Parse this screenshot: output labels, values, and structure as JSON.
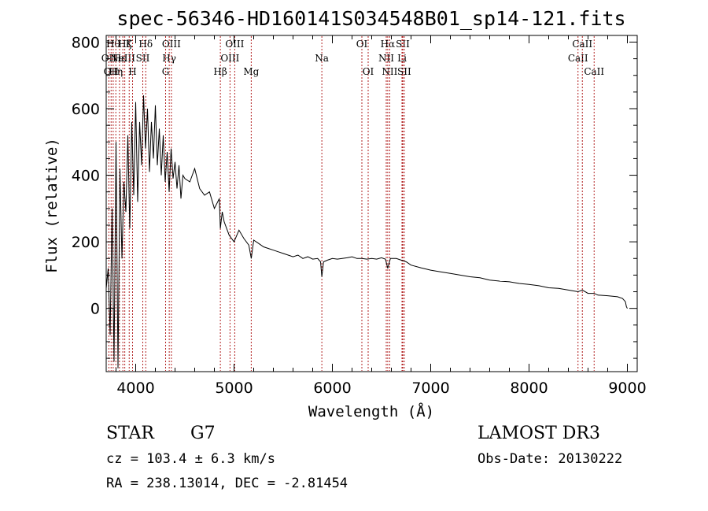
{
  "chart_data": {
    "type": "line",
    "title": "spec-56346-HD160141S034548B01_sp14-121.fits",
    "xlabel": "Wavelength (Å)",
    "ylabel": "Flux (relative)",
    "xlim": [
      3700,
      9100
    ],
    "ylim": [
      -190,
      820
    ],
    "xticks": [
      4000,
      5000,
      6000,
      7000,
      8000,
      9000
    ],
    "yticks": [
      0,
      200,
      400,
      600,
      800
    ],
    "xtick_labels": [
      "4000",
      "5000",
      "6000",
      "7000",
      "8000",
      "9000"
    ],
    "ytick_labels": [
      "0",
      "200",
      "400",
      "600",
      "800"
    ],
    "series": [
      {
        "name": "flux",
        "x": [
          3700,
          3720,
          3740,
          3760,
          3780,
          3800,
          3820,
          3840,
          3860,
          3880,
          3900,
          3920,
          3940,
          3960,
          3980,
          4000,
          4020,
          4040,
          4060,
          4080,
          4100,
          4120,
          4140,
          4160,
          4180,
          4200,
          4220,
          4240,
          4260,
          4280,
          4300,
          4320,
          4340,
          4360,
          4380,
          4400,
          4420,
          4440,
          4460,
          4480,
          4500,
          4550,
          4600,
          4650,
          4700,
          4750,
          4800,
          4850,
          4861,
          4880,
          4900,
          4950,
          5000,
          5050,
          5100,
          5150,
          5175,
          5200,
          5250,
          5300,
          5350,
          5400,
          5450,
          5500,
          5550,
          5600,
          5650,
          5700,
          5750,
          5800,
          5850,
          5880,
          5893,
          5910,
          5950,
          6000,
          6050,
          6100,
          6150,
          6200,
          6250,
          6300,
          6350,
          6400,
          6450,
          6500,
          6540,
          6563,
          6590,
          6650,
          6700,
          6750,
          6800,
          6900,
          7000,
          7100,
          7200,
          7300,
          7400,
          7500,
          7600,
          7700,
          7800,
          7900,
          8000,
          8100,
          8200,
          8300,
          8400,
          8498,
          8542,
          8600,
          8662,
          8700,
          8800,
          8900,
          8950,
          8980,
          8990,
          9000
        ],
        "values": [
          60,
          120,
          -80,
          300,
          -160,
          500,
          -180,
          420,
          150,
          380,
          290,
          520,
          240,
          560,
          340,
          620,
          320,
          560,
          430,
          640,
          480,
          600,
          410,
          560,
          450,
          610,
          430,
          540,
          400,
          520,
          380,
          470,
          350,
          480,
          390,
          440,
          360,
          430,
          330,
          400,
          390,
          380,
          420,
          360,
          340,
          350,
          300,
          330,
          240,
          290,
          260,
          220,
          200,
          235,
          210,
          190,
          150,
          205,
          195,
          185,
          180,
          175,
          170,
          165,
          160,
          155,
          160,
          150,
          155,
          148,
          150,
          140,
          95,
          140,
          145,
          150,
          148,
          150,
          152,
          155,
          150,
          150,
          148,
          150,
          148,
          152,
          148,
          120,
          150,
          150,
          145,
          140,
          130,
          122,
          115,
          110,
          105,
          100,
          95,
          92,
          85,
          82,
          80,
          75,
          72,
          68,
          62,
          60,
          55,
          50,
          55,
          45,
          45,
          40,
          38,
          35,
          30,
          20,
          5,
          0
        ]
      }
    ],
    "lines": [
      {
        "wavelength": 3727,
        "label": "OII",
        "row": 2
      },
      {
        "wavelength": 3750,
        "label": "OII",
        "row": 3
      },
      {
        "wavelength": 3771,
        "label": "Hθ",
        "row": 1
      },
      {
        "wavelength": 3798,
        "label": "Hη",
        "row": 3
      },
      {
        "wavelength": 3835,
        "label": "Hε",
        "row": 2
      },
      {
        "wavelength": 3869,
        "label": "NeIII",
        "row": 2
      },
      {
        "wavelength": 3889,
        "label": "Hζ",
        "row": 1
      },
      {
        "wavelength": 3934,
        "label": "K",
        "row": 1
      },
      {
        "wavelength": 3968,
        "label": "H",
        "row": 3
      },
      {
        "wavelength": 4072,
        "label": "SII",
        "row": 2
      },
      {
        "wavelength": 4102,
        "label": "Hδ",
        "row": 1
      },
      {
        "wavelength": 4304,
        "label": "G",
        "row": 3
      },
      {
        "wavelength": 4341,
        "label": "Hγ",
        "row": 2
      },
      {
        "wavelength": 4363,
        "label": "OIII",
        "row": 1
      },
      {
        "wavelength": 4861,
        "label": "Hβ",
        "row": 3
      },
      {
        "wavelength": 4959,
        "label": "OIII",
        "row": 2
      },
      {
        "wavelength": 5007,
        "label": "OIII",
        "row": 1
      },
      {
        "wavelength": 5175,
        "label": "Mg",
        "row": 3
      },
      {
        "wavelength": 5893,
        "label": "Na",
        "row": 2
      },
      {
        "wavelength": 6300,
        "label": "OI",
        "row": 1
      },
      {
        "wavelength": 6364,
        "label": "OI",
        "row": 3
      },
      {
        "wavelength": 6548,
        "label": "NII",
        "row": 2
      },
      {
        "wavelength": 6563,
        "label": "Hα",
        "row": 1
      },
      {
        "wavelength": 6583,
        "label": "NII",
        "row": 3
      },
      {
        "wavelength": 6708,
        "label": "Li",
        "row": 2
      },
      {
        "wavelength": 6716,
        "label": "SII",
        "row": 1
      },
      {
        "wavelength": 6731,
        "label": "SII",
        "row": 3
      },
      {
        "wavelength": 8498,
        "label": "CaII",
        "row": 2
      },
      {
        "wavelength": 8542,
        "label": "CaII",
        "row": 1
      },
      {
        "wavelength": 8662,
        "label": "CaII",
        "row": 3
      }
    ],
    "line_color": "#b22222"
  },
  "info": {
    "class_label": "STAR",
    "subclass": "G7",
    "survey": "LAMOST DR3",
    "cz": "cz = 103.4 ± 6.3 km/s",
    "obs_date": "Obs-Date: 20130222",
    "coords": "RA = 238.13014, DEC =  -2.81454"
  }
}
